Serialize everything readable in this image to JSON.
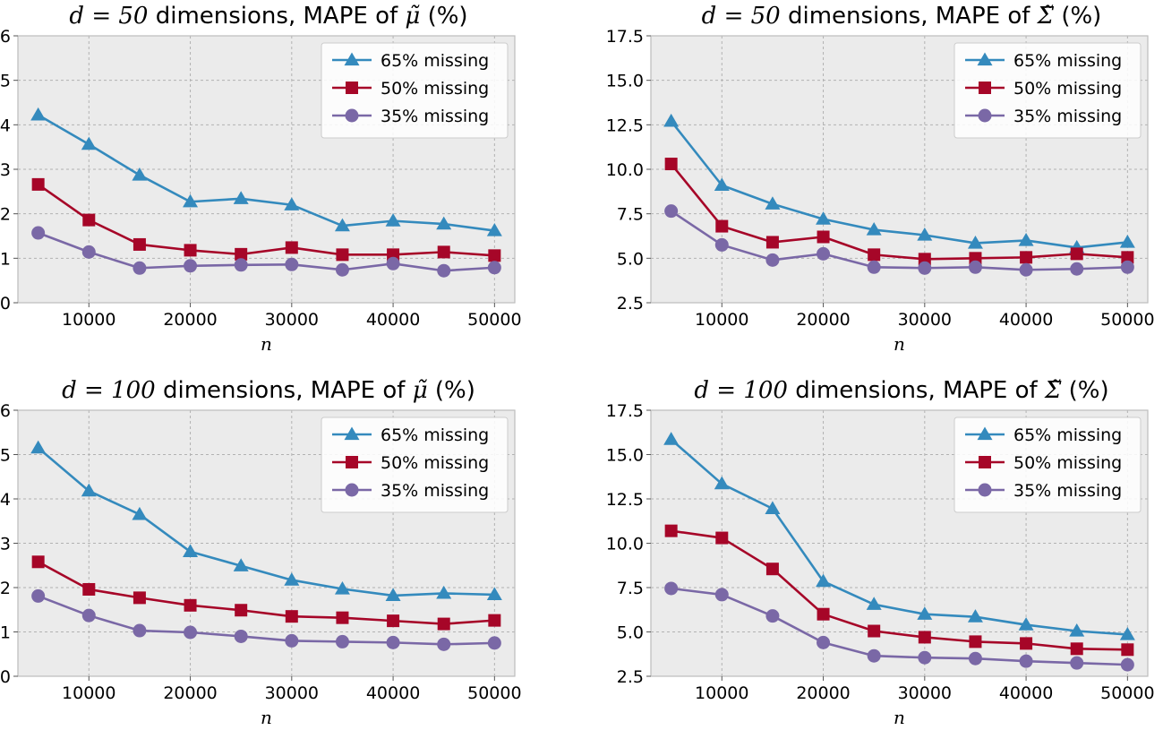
{
  "colors": {
    "background": "#ebebeb",
    "grid": "#b2b2b2",
    "spine": "#bcbcbc",
    "s65": "#348abd",
    "s50": "#a60628",
    "s35": "#7a68a6"
  },
  "chart_data": [
    {
      "type": "line",
      "title_math": "d = 50",
      "title_text": " dimensions, MAPE of ",
      "title_symbol": "μ̃",
      "title_suffix": " (%)",
      "xlabel": "n",
      "ylabel": "",
      "xlim": [
        3000,
        52000
      ],
      "ylim": [
        0,
        6
      ],
      "xticks": [
        10000,
        20000,
        30000,
        40000,
        50000
      ],
      "xtick_labels": [
        "10000",
        "20000",
        "30000",
        "40000",
        "50000"
      ],
      "yticks": [
        0,
        1,
        2,
        3,
        4,
        5,
        6
      ],
      "ytick_labels": [
        "0",
        "1",
        "2",
        "3",
        "4",
        "5",
        "6"
      ],
      "grid": true,
      "legend": "top-right",
      "x": [
        5000,
        10000,
        15000,
        20000,
        25000,
        30000,
        35000,
        40000,
        45000,
        50000
      ],
      "series": [
        {
          "name": "65% missing",
          "marker": "triangle",
          "color_key": "s65",
          "values": [
            4.22,
            3.56,
            2.87,
            2.27,
            2.34,
            2.2,
            1.73,
            1.84,
            1.77,
            1.62
          ]
        },
        {
          "name": "50% missing",
          "marker": "square",
          "color_key": "s50",
          "values": [
            2.66,
            1.86,
            1.31,
            1.18,
            1.09,
            1.24,
            1.08,
            1.08,
            1.14,
            1.06
          ]
        },
        {
          "name": "35% missing",
          "marker": "circle",
          "color_key": "s35",
          "values": [
            1.57,
            1.14,
            0.78,
            0.83,
            0.85,
            0.86,
            0.74,
            0.88,
            0.72,
            0.79
          ]
        }
      ]
    },
    {
      "type": "line",
      "title_math": "d = 50",
      "title_text": " dimensions, MAPE of ",
      "title_symbol": "Σ̃",
      "title_suffix": " (%)",
      "xlabel": "n",
      "ylabel": "",
      "xlim": [
        3000,
        52000
      ],
      "ylim": [
        2.5,
        17.5
      ],
      "xticks": [
        10000,
        20000,
        30000,
        40000,
        50000
      ],
      "xtick_labels": [
        "10000",
        "20000",
        "30000",
        "40000",
        "50000"
      ],
      "yticks": [
        2.5,
        5.0,
        7.5,
        10.0,
        12.5,
        15.0,
        17.5
      ],
      "ytick_labels": [
        "2.5",
        "5.0",
        "7.5",
        "10.0",
        "12.5",
        "15.0",
        "17.5"
      ],
      "grid": true,
      "legend": "top-right",
      "x": [
        5000,
        10000,
        15000,
        20000,
        25000,
        30000,
        35000,
        40000,
        45000,
        50000
      ],
      "series": [
        {
          "name": "65% missing",
          "marker": "triangle",
          "color_key": "s65",
          "values": [
            12.7,
            9.1,
            8.05,
            7.2,
            6.6,
            6.3,
            5.85,
            6.0,
            5.6,
            5.9
          ]
        },
        {
          "name": "50% missing",
          "marker": "square",
          "color_key": "s50",
          "values": [
            10.3,
            6.8,
            5.9,
            6.2,
            5.2,
            4.95,
            5.0,
            5.05,
            5.25,
            5.05
          ]
        },
        {
          "name": "35% missing",
          "marker": "circle",
          "color_key": "s35",
          "values": [
            7.65,
            5.75,
            4.9,
            5.25,
            4.5,
            4.45,
            4.5,
            4.35,
            4.4,
            4.5
          ]
        }
      ]
    },
    {
      "type": "line",
      "title_math": "d = 100",
      "title_text": " dimensions, MAPE of ",
      "title_symbol": "μ̃",
      "title_suffix": " (%)",
      "xlabel": "n",
      "ylabel": "",
      "xlim": [
        3000,
        52000
      ],
      "ylim": [
        0,
        6
      ],
      "xticks": [
        10000,
        20000,
        30000,
        40000,
        50000
      ],
      "xtick_labels": [
        "10000",
        "20000",
        "30000",
        "40000",
        "50000"
      ],
      "yticks": [
        0,
        1,
        2,
        3,
        4,
        5,
        6
      ],
      "ytick_labels": [
        "0",
        "1",
        "2",
        "3",
        "4",
        "5",
        "6"
      ],
      "grid": true,
      "legend": "top-right",
      "x": [
        5000,
        10000,
        15000,
        20000,
        25000,
        30000,
        35000,
        40000,
        45000,
        50000
      ],
      "series": [
        {
          "name": "65% missing",
          "marker": "triangle",
          "color_key": "s65",
          "values": [
            5.15,
            4.18,
            3.65,
            2.81,
            2.49,
            2.17,
            1.97,
            1.82,
            1.87,
            1.84
          ]
        },
        {
          "name": "50% missing",
          "marker": "square",
          "color_key": "s50",
          "values": [
            2.58,
            1.96,
            1.77,
            1.6,
            1.49,
            1.35,
            1.32,
            1.25,
            1.18,
            1.26
          ]
        },
        {
          "name": "35% missing",
          "marker": "circle",
          "color_key": "s35",
          "values": [
            1.81,
            1.37,
            1.03,
            0.99,
            0.9,
            0.8,
            0.78,
            0.76,
            0.72,
            0.75
          ]
        }
      ]
    },
    {
      "type": "line",
      "title_math": "d = 100",
      "title_text": " dimensions, MAPE of ",
      "title_symbol": "Σ̃",
      "title_suffix": " (%)",
      "xlabel": "n",
      "ylabel": "",
      "xlim": [
        3000,
        52000
      ],
      "ylim": [
        2.5,
        17.5
      ],
      "xticks": [
        10000,
        20000,
        30000,
        40000,
        50000
      ],
      "xtick_labels": [
        "10000",
        "20000",
        "30000",
        "40000",
        "50000"
      ],
      "yticks": [
        2.5,
        5.0,
        7.5,
        10.0,
        12.5,
        15.0,
        17.5
      ],
      "ytick_labels": [
        "2.5",
        "5.0",
        "7.5",
        "10.0",
        "12.5",
        "15.0",
        "17.5"
      ],
      "grid": true,
      "legend": "top-right",
      "x": [
        5000,
        10000,
        15000,
        20000,
        25000,
        30000,
        35000,
        40000,
        45000,
        50000
      ],
      "series": [
        {
          "name": "65% missing",
          "marker": "triangle",
          "color_key": "s65",
          "values": [
            15.85,
            13.35,
            11.95,
            7.85,
            6.55,
            6.0,
            5.85,
            5.4,
            5.05,
            4.85
          ]
        },
        {
          "name": "50% missing",
          "marker": "square",
          "color_key": "s50",
          "values": [
            10.7,
            10.3,
            8.55,
            6.0,
            5.05,
            4.7,
            4.45,
            4.35,
            4.05,
            4.0
          ]
        },
        {
          "name": "35% missing",
          "marker": "circle",
          "color_key": "s35",
          "values": [
            7.45,
            7.1,
            5.9,
            4.4,
            3.65,
            3.55,
            3.5,
            3.35,
            3.25,
            3.15
          ]
        }
      ]
    }
  ]
}
